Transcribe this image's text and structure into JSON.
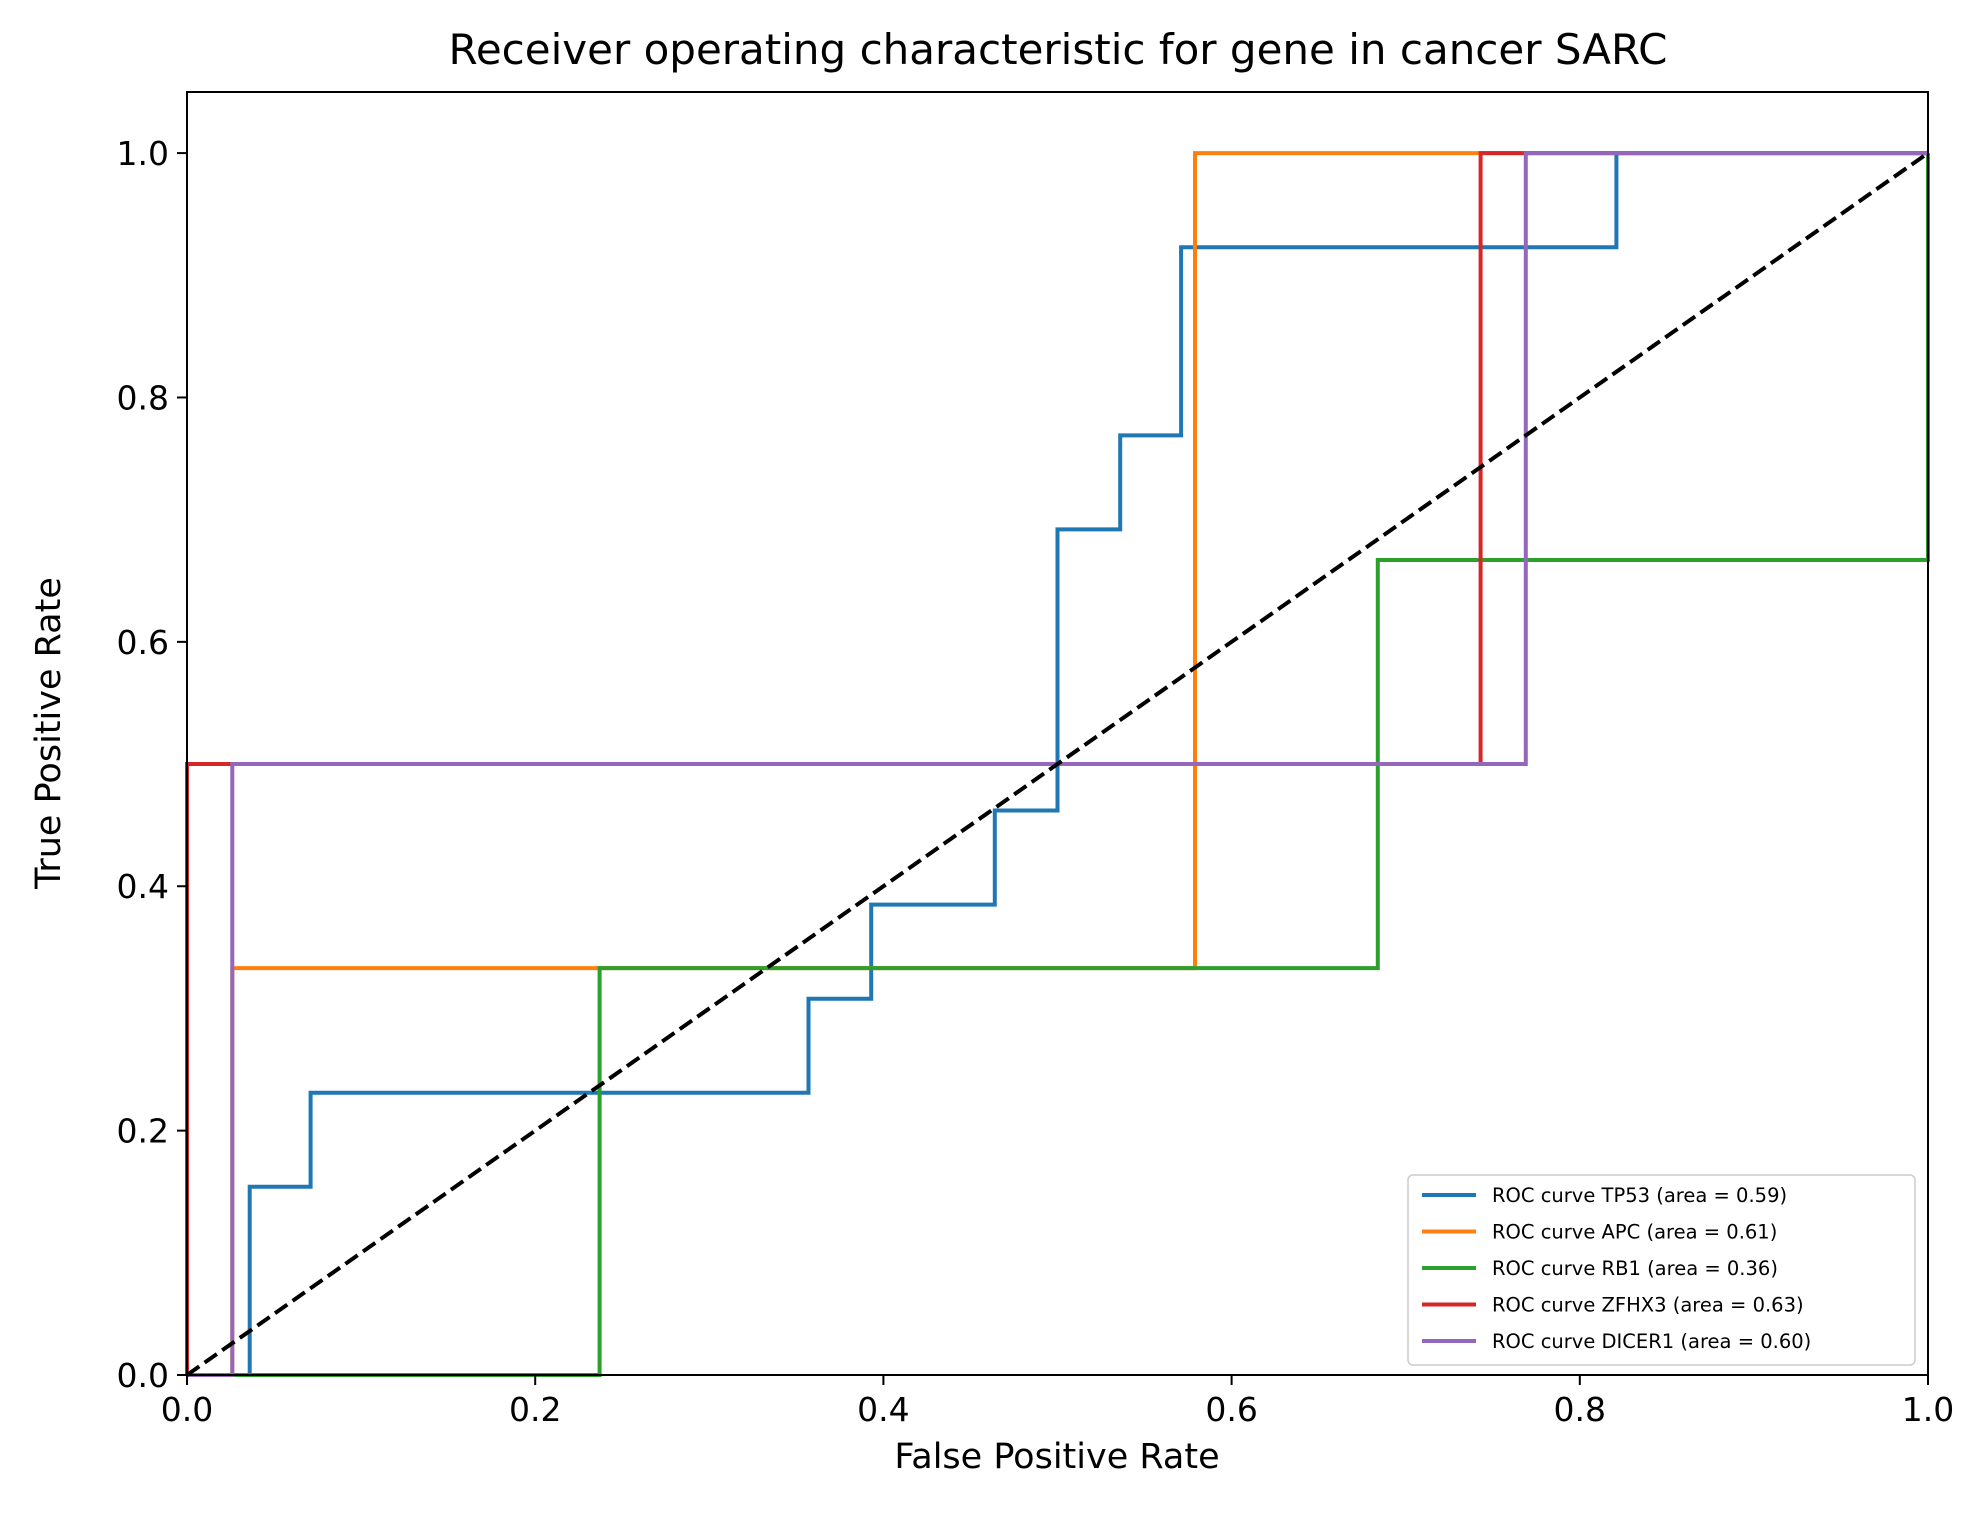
{
  "chart_data": {
    "type": "line",
    "title": "Receiver operating characteristic for gene in cancer SARC",
    "xlabel": "False Positive Rate",
    "ylabel": "True Positive Rate",
    "xlim": [
      0.0,
      1.0
    ],
    "ylim": [
      0.0,
      1.05
    ],
    "xticks": [
      "0.0",
      "0.2",
      "0.4",
      "0.6",
      "0.8",
      "1.0"
    ],
    "yticks": [
      "0.0",
      "0.2",
      "0.4",
      "0.6",
      "0.8",
      "1.0"
    ],
    "grid": false,
    "legend_position": "lower-right",
    "series": [
      {
        "name": "ROC curve TP53 (area = 0.59)",
        "color": "#1f77b4",
        "x": [
          0.0,
          0.036,
          0.036,
          0.071,
          0.071,
          0.357,
          0.357,
          0.393,
          0.393,
          0.464,
          0.464,
          0.5,
          0.5,
          0.536,
          0.536,
          0.571,
          0.571,
          0.821,
          0.821,
          1.0
        ],
        "y": [
          0.0,
          0.0,
          0.154,
          0.154,
          0.231,
          0.231,
          0.308,
          0.308,
          0.385,
          0.385,
          0.462,
          0.462,
          0.692,
          0.692,
          0.769,
          0.769,
          0.923,
          0.923,
          1.0,
          1.0
        ]
      },
      {
        "name": "ROC curve APC (area = 0.61)",
        "color": "#ff7f0e",
        "x": [
          0.0,
          0.026,
          0.026,
          0.579,
          0.579,
          1.0
        ],
        "y": [
          0.0,
          0.0,
          0.333,
          0.333,
          1.0,
          1.0
        ]
      },
      {
        "name": "ROC curve RB1 (area = 0.36)",
        "color": "#2ca02c",
        "x": [
          0.0,
          0.237,
          0.237,
          0.684,
          0.684,
          1.0,
          1.0
        ],
        "y": [
          0.0,
          0.0,
          0.333,
          0.333,
          0.667,
          0.667,
          1.0
        ]
      },
      {
        "name": "ROC curve ZFHX3 (area = 0.63)",
        "color": "#d62728",
        "x": [
          0.0,
          0.0,
          0.026,
          0.026,
          0.743,
          0.743,
          1.0
        ],
        "y": [
          0.0,
          0.5,
          0.5,
          0.5,
          0.5,
          1.0,
          1.0
        ]
      },
      {
        "name": "ROC curve DICER1 (area = 0.60)",
        "color": "#9467bd",
        "x": [
          0.0,
          0.026,
          0.026,
          0.769,
          0.769,
          1.0
        ],
        "y": [
          0.0,
          0.0,
          0.5,
          0.5,
          1.0,
          1.0
        ]
      }
    ],
    "reference_line": {
      "x": [
        0.0,
        1.0
      ],
      "y": [
        0.0,
        1.0
      ],
      "color": "#000000",
      "style": "dashed"
    }
  }
}
